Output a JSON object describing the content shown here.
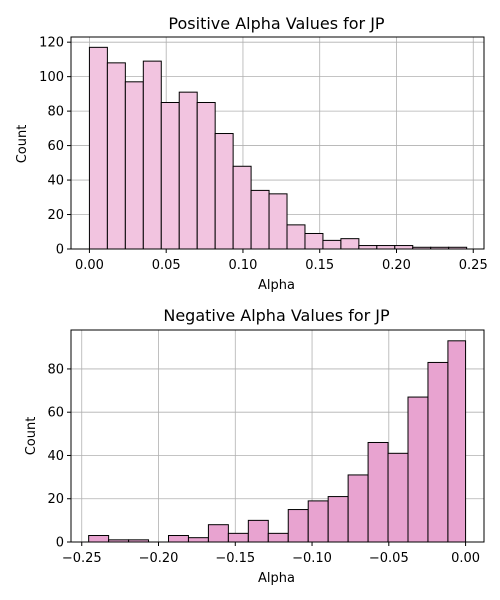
{
  "chart_data": [
    {
      "type": "histogram",
      "title": "Positive Alpha Values for JP",
      "xlabel": "Alpha",
      "ylabel": "Count",
      "xlim": [
        -0.012,
        0.257
      ],
      "ylim": [
        0,
        123
      ],
      "xticks": [
        0.0,
        0.05,
        0.1,
        0.15,
        0.2,
        0.25
      ],
      "xtick_labels": [
        "0.00",
        "0.05",
        "0.10",
        "0.15",
        "0.20",
        "0.25"
      ],
      "yticks": [
        0,
        20,
        40,
        60,
        80,
        100,
        120
      ],
      "ytick_labels": [
        "0",
        "20",
        "40",
        "60",
        "80",
        "100",
        "120"
      ],
      "grid": true,
      "bar_color": "#f2c4e0",
      "edge_color": "#000000",
      "bins": [
        [
          0.0,
          0.0117,
          117
        ],
        [
          0.0117,
          0.0234,
          108
        ],
        [
          0.0234,
          0.0351,
          97
        ],
        [
          0.0351,
          0.0468,
          109
        ],
        [
          0.0468,
          0.0585,
          85
        ],
        [
          0.0585,
          0.0702,
          91
        ],
        [
          0.0702,
          0.0819,
          85
        ],
        [
          0.0819,
          0.0936,
          67
        ],
        [
          0.0936,
          0.1053,
          48
        ],
        [
          0.1053,
          0.117,
          34
        ],
        [
          0.117,
          0.1287,
          32
        ],
        [
          0.1287,
          0.1404,
          14
        ],
        [
          0.1404,
          0.1521,
          9
        ],
        [
          0.1521,
          0.1638,
          5
        ],
        [
          0.1638,
          0.1755,
          6
        ],
        [
          0.1755,
          0.1872,
          2
        ],
        [
          0.1872,
          0.1989,
          2
        ],
        [
          0.1989,
          0.2106,
          2
        ],
        [
          0.2106,
          0.2223,
          1
        ],
        [
          0.2223,
          0.234,
          1
        ],
        [
          0.234,
          0.2457,
          1
        ]
      ]
    },
    {
      "type": "histogram",
      "title": "Negative Alpha Values for JP",
      "xlabel": "Alpha",
      "ylabel": "Count",
      "xlim": [
        -0.257,
        0.012
      ],
      "ylim": [
        0,
        98
      ],
      "xticks": [
        -0.25,
        -0.2,
        -0.15,
        -0.1,
        -0.05,
        0.0
      ],
      "xtick_labels": [
        "−0.25",
        "−0.20",
        "−0.15",
        "−0.10",
        "−0.05",
        "0.00"
      ],
      "yticks": [
        0,
        20,
        40,
        60,
        80
      ],
      "ytick_labels": [
        "0",
        "20",
        "40",
        "60",
        "80"
      ],
      "grid": true,
      "bar_color": "#e8a3d0",
      "edge_color": "#000000",
      "bins": [
        [
          -0.2455,
          -0.2325,
          3
        ],
        [
          -0.2325,
          -0.2195,
          1
        ],
        [
          -0.2195,
          -0.2065,
          1
        ],
        [
          -0.2065,
          -0.1935,
          0
        ],
        [
          -0.1935,
          -0.1805,
          3
        ],
        [
          -0.1805,
          -0.1675,
          2
        ],
        [
          -0.1675,
          -0.1545,
          8
        ],
        [
          -0.1545,
          -0.1415,
          4
        ],
        [
          -0.1415,
          -0.1285,
          10
        ],
        [
          -0.1285,
          -0.1155,
          4
        ],
        [
          -0.1155,
          -0.1025,
          15
        ],
        [
          -0.1025,
          -0.0895,
          19
        ],
        [
          -0.0895,
          -0.0765,
          21
        ],
        [
          -0.0765,
          -0.0635,
          31
        ],
        [
          -0.0635,
          -0.0505,
          46
        ],
        [
          -0.0505,
          -0.0375,
          41
        ],
        [
          -0.0375,
          -0.0245,
          67
        ],
        [
          -0.0245,
          -0.0115,
          83
        ],
        [
          -0.0115,
          0.0,
          93
        ]
      ]
    }
  ]
}
